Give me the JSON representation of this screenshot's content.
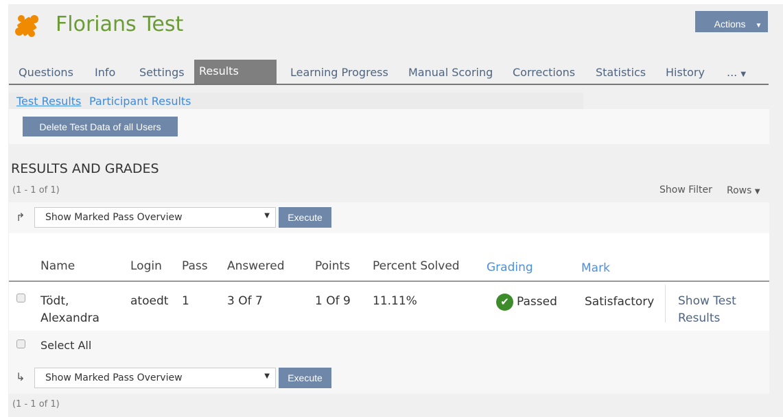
{
  "header": {
    "title": "Florians Test",
    "actions_label": "Actions"
  },
  "tabs": [
    "Questions",
    "Info",
    "Settings",
    "Results",
    "Learning Progress",
    "Manual Scoring",
    "Corrections",
    "Statistics",
    "History",
    "..."
  ],
  "subtabs": [
    "Test Results",
    "Participant Results"
  ],
  "toolbar": {
    "delete_label": "Delete Test Data of all Users"
  },
  "section": {
    "title": "RESULTS AND GRADES",
    "count_top": "(1 - 1 of 1)",
    "count_bottom": "(1 - 1 of 1)",
    "show_filter": "Show Filter",
    "rows": "Rows"
  },
  "bulk": {
    "selected": "Show Marked Pass Overview",
    "execute": "Execute",
    "select_all": "Select All"
  },
  "table": {
    "columns": [
      "Name",
      "Login",
      "Pass",
      "Answered",
      "Points",
      "Percent Solved",
      "Grading",
      "Mark"
    ],
    "rows": [
      {
        "name_last": "Tödt,",
        "name_first": "Alexandra",
        "login": "atoedt",
        "pass": "1",
        "answered": "3 Of 7",
        "points": "1 Of 9",
        "percent": "11.11%",
        "grading": "Passed",
        "mark": "Satisfactory",
        "action": "Show Test Results"
      }
    ]
  },
  "colors": {
    "accent": "#6f87a8",
    "title": "#6b9b37",
    "link": "#3b8be0",
    "passed": "#3d8b2a",
    "logo": "#f08a00"
  }
}
